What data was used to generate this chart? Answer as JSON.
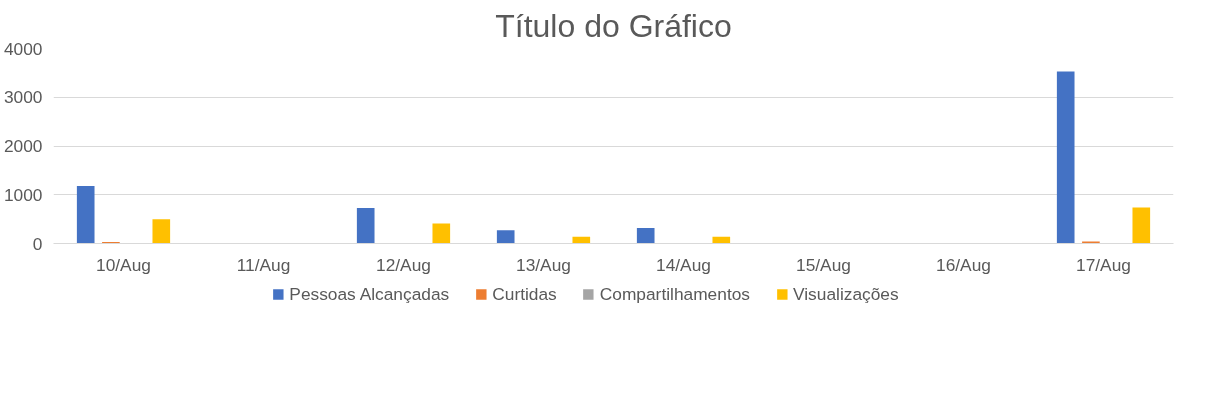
{
  "chart_data": {
    "type": "bar",
    "title": "Título do Gráfico",
    "categories": [
      "10/Aug",
      "11/Aug",
      "12/Aug",
      "13/Aug",
      "14/Aug",
      "15/Aug",
      "16/Aug",
      "17/Aug"
    ],
    "series": [
      {
        "name": "Pessoas Alcançadas",
        "color": "#4472c4",
        "values": [
          1180,
          0,
          730,
          270,
          320,
          0,
          0,
          3530
        ]
      },
      {
        "name": "Curtidas",
        "color": "#ed7d31",
        "values": [
          30,
          0,
          10,
          0,
          0,
          0,
          0,
          40
        ]
      },
      {
        "name": "Compartilhamentos",
        "color": "#a5a5a5",
        "values": [
          0,
          0,
          0,
          0,
          0,
          0,
          0,
          0
        ]
      },
      {
        "name": "Visualizações",
        "color": "#ffc000",
        "values": [
          500,
          0,
          410,
          140,
          140,
          0,
          0,
          740
        ]
      }
    ],
    "ylim": [
      0,
      4000
    ],
    "yticks": [
      0,
      1000,
      2000,
      3000,
      4000
    ],
    "grid": "y",
    "legend": "bottom"
  }
}
